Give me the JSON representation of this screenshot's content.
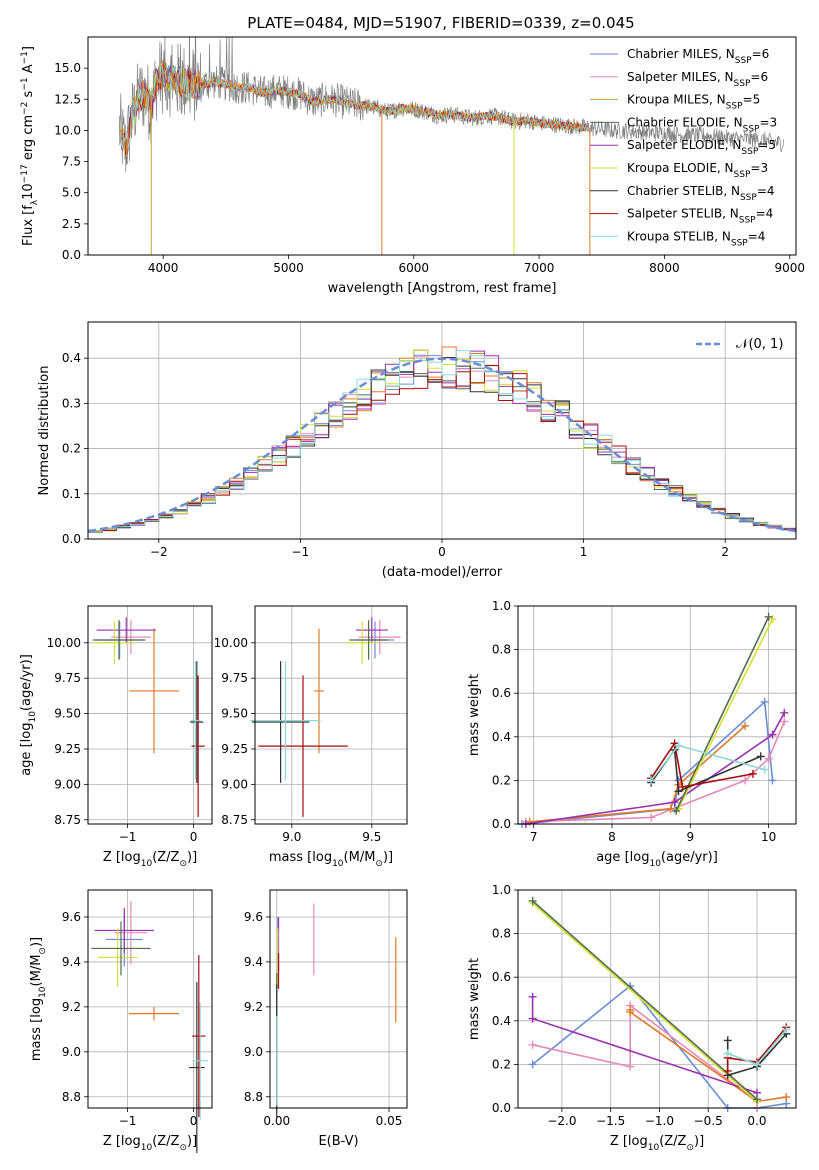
{
  "figure": {
    "title": "PLATE=0484, MJD=51907, FIBERID=0339, z=0.045"
  },
  "legend_spectrum": [
    {
      "label": "Chabrier MILES, N",
      "sub": "SSP",
      "tail": "=6",
      "color": "#6b8dd6"
    },
    {
      "label": "Salpeter MILES, N",
      "sub": "SSP",
      "tail": "=6",
      "color": "#e48ab8"
    },
    {
      "label": "Kroupa MILES, N",
      "sub": "SSP",
      "tail": "=5",
      "color": "#c7a33a"
    },
    {
      "label": "Chabrier ELODIE, N",
      "sub": "SSP",
      "tail": "=3",
      "color": "#4f6f4f"
    },
    {
      "label": "Salpeter ELODIE, N",
      "sub": "SSP",
      "tail": "=5",
      "color": "#9b30b0"
    },
    {
      "label": "Kroupa ELODIE, N",
      "sub": "SSP",
      "tail": "=3",
      "color": "#d7e030"
    },
    {
      "label": "Chabrier STELIB, N",
      "sub": "SSP",
      "tail": "=4",
      "color": "#333333"
    },
    {
      "label": "Salpeter STELIB, N",
      "sub": "SSP",
      "tail": "=4",
      "color": "#a80c0c"
    },
    {
      "label": "Kroupa STELIB, N",
      "sub": "SSP",
      "tail": "=4",
      "color": "#8fd8d8"
    }
  ],
  "legend_normal": {
    "label": "𝒩(0, 1)",
    "color": "#6b8dd6"
  },
  "chart_data": [
    {
      "id": "spectrum",
      "type": "line",
      "xlabel": "wavelength [Angstrom, rest frame]",
      "ylabel": "Flux [f",
      "ylabel_sub": "λ",
      "ylabel_tail": "10",
      "ylabel_sup": "−17",
      "ylabel_end": " erg cm",
      "ylabel_sup2": "−2",
      "ylabel_s": " s",
      "ylabel_sup3": "−1",
      "ylabel_a": " A",
      "ylabel_sup4": "−1",
      "ylabel_close": "]",
      "xlim": [
        3400,
        9050
      ],
      "ylim": [
        0,
        17.5
      ],
      "xticks": [
        "4000",
        "5000",
        "6000",
        "7000",
        "8000",
        "9000"
      ],
      "xtick_values": [
        4000,
        5000,
        6000,
        7000,
        8000,
        9000
      ],
      "yticks": [
        "0.0",
        "2.5",
        "5.0",
        "7.5",
        "10.0",
        "12.5",
        "15.0"
      ],
      "ytick_values": [
        0,
        2.5,
        5,
        7.5,
        10,
        12.5,
        15
      ],
      "data_x": [
        3650,
        3700,
        3750,
        3800,
        3850,
        3900,
        3950,
        4000,
        4050,
        4100,
        4200,
        4300,
        4400,
        4500,
        4600,
        4700,
        4800,
        4900,
        5000,
        5100,
        5200,
        5300,
        5400,
        5500,
        5600,
        5700,
        5800,
        5900,
        6000,
        6100,
        6200,
        6300,
        6400,
        6500,
        6600,
        6700,
        6800,
        6900,
        7000,
        7100,
        7200,
        7300,
        7400,
        7500,
        7600,
        7700,
        7800,
        7900,
        8000,
        8100,
        8200,
        8300,
        8400,
        8500,
        8600,
        8700,
        8800,
        8900
      ],
      "data_y": [
        10.2,
        8.5,
        11.0,
        12.5,
        13.0,
        12.0,
        14.0,
        14.5,
        14.2,
        14.0,
        13.8,
        13.6,
        13.9,
        13.7,
        13.5,
        13.4,
        13.0,
        13.2,
        13.1,
        12.9,
        12.3,
        12.5,
        12.4,
        12.1,
        12.0,
        11.8,
        11.5,
        11.8,
        11.7,
        11.5,
        11.2,
        11.3,
        11.1,
        11.0,
        11.2,
        11.0,
        10.7,
        10.8,
        10.6,
        10.5,
        10.4,
        10.3,
        10.2,
        10.1,
        10.0,
        10.0,
        9.9,
        9.8,
        9.8,
        9.7,
        9.6,
        9.6,
        9.5,
        9.4,
        9.3,
        9.3,
        9.2,
        9.0
      ]
    },
    {
      "id": "residuals",
      "type": "area",
      "xlabel": "(data-model)/error",
      "ylabel": "Normed distribution",
      "xlim": [
        -2.5,
        2.5
      ],
      "ylim": [
        0,
        0.48
      ],
      "xticks": [
        "−2",
        "−1",
        "0",
        "1",
        "2"
      ],
      "xtick_values": [
        -2,
        -1,
        0,
        1,
        2
      ],
      "yticks": [
        "0.0",
        "0.1",
        "0.2",
        "0.3",
        "0.4"
      ],
      "ytick_values": [
        0,
        0.1,
        0.2,
        0.3,
        0.4
      ],
      "bins_start": -2.5,
      "bin_width": 0.1
    },
    {
      "id": "age-vs-Z",
      "type": "scatter",
      "xlabel": "Z [log",
      "xlabel_sub": "10",
      "xlabel_tail": "(Z/Z",
      "xlabel_sub2": "⊙",
      "xlabel_close": ")]",
      "ylabel": "age  [log",
      "ylabel_sub": "10",
      "ylabel_tail": "(age/yr)]",
      "xlim": [
        -1.6,
        0.28
      ],
      "ylim": [
        8.72,
        10.26
      ],
      "xticks": [
        "−1",
        "0"
      ],
      "xtick_values": [
        -1,
        0
      ],
      "yticks": [
        "8.75",
        "9.00",
        "9.25",
        "9.50",
        "9.75",
        "10.00"
      ],
      "ytick_values": [
        8.75,
        9.0,
        9.25,
        9.5,
        9.75,
        10.0
      ],
      "points": [
        {
          "x": -1.12,
          "y": 10.02,
          "xerr": 0.35,
          "yerr": 0.13,
          "color": "#6b8dd6"
        },
        {
          "x": -0.95,
          "y": 10.04,
          "xerr": 0.3,
          "yerr": 0.12,
          "color": "#e48ab8"
        },
        {
          "x": -0.6,
          "y": 9.66,
          "xerr": 0.38,
          "yerr": 0.44,
          "color": "#e07a2a"
        },
        {
          "x": -1.02,
          "y": 10.09,
          "xerr": 0.45,
          "yerr": 0.09,
          "color": "#9b30b0"
        },
        {
          "x": -1.2,
          "y": 10.0,
          "xerr": 0.32,
          "yerr": 0.15,
          "color": "#d7e030"
        },
        {
          "x": -1.13,
          "y": 10.02,
          "xerr": 0.4,
          "yerr": 0.14,
          "color": "#4f6f4f"
        },
        {
          "x": 0.05,
          "y": 9.44,
          "xerr": 0.1,
          "yerr": 0.43,
          "color": "#333333"
        },
        {
          "x": 0.07,
          "y": 9.27,
          "xerr": 0.1,
          "yerr": 0.5,
          "color": "#a80c0c"
        },
        {
          "x": 0.03,
          "y": 9.45,
          "xerr": 0.08,
          "yerr": 0.42,
          "color": "#8fd8d8"
        }
      ]
    },
    {
      "id": "age-vs-mass",
      "type": "scatter",
      "xlabel": "mass [log",
      "xlabel_sub": "10",
      "xlabel_tail": "(M/M",
      "xlabel_sub2": "⊙",
      "xlabel_close": ")]",
      "xlim": [
        8.77,
        9.72
      ],
      "ylim": [
        8.72,
        10.26
      ],
      "xticks": [
        "9.0",
        "9.5"
      ],
      "xtick_values": [
        9.0,
        9.5
      ],
      "yticks": [
        "8.75",
        "9.00",
        "9.25",
        "9.50",
        "9.75",
        "10.00"
      ],
      "ytick_values": [
        8.75,
        9.0,
        9.25,
        9.5,
        9.75,
        10.0
      ],
      "points": [
        {
          "x": 9.52,
          "y": 10.02,
          "xerr": 0.12,
          "yerr": 0.13,
          "color": "#6b8dd6"
        },
        {
          "x": 9.55,
          "y": 10.04,
          "xerr": 0.13,
          "yerr": 0.12,
          "color": "#e48ab8"
        },
        {
          "x": 9.17,
          "y": 9.66,
          "xerr": 0.03,
          "yerr": 0.44,
          "color": "#e07a2a"
        },
        {
          "x": 9.5,
          "y": 10.09,
          "xerr": 0.1,
          "yerr": 0.09,
          "color": "#9b30b0"
        },
        {
          "x": 9.44,
          "y": 10.0,
          "xerr": 0.1,
          "yerr": 0.15,
          "color": "#d7e030"
        },
        {
          "x": 9.48,
          "y": 10.02,
          "xerr": 0.12,
          "yerr": 0.14,
          "color": "#4f6f4f"
        },
        {
          "x": 8.93,
          "y": 9.44,
          "xerr": 0.18,
          "yerr": 0.43,
          "color": "#333333"
        },
        {
          "x": 9.07,
          "y": 9.27,
          "xerr": 0.28,
          "yerr": 0.5,
          "color": "#a80c0c"
        },
        {
          "x": 8.96,
          "y": 9.45,
          "xerr": 0.22,
          "yerr": 0.42,
          "color": "#8fd8d8"
        }
      ]
    },
    {
      "id": "massweight-vs-age",
      "type": "line",
      "xlabel": "age  [log",
      "xlabel_sub": "10",
      "xlabel_tail": "(age/yr)]",
      "ylabel": "mass weight",
      "xlim": [
        6.8,
        10.35
      ],
      "ylim": [
        0,
        1.0
      ],
      "xticks": [
        "7",
        "8",
        "9",
        "10"
      ],
      "xtick_values": [
        7,
        8,
        9,
        10
      ],
      "yticks": [
        "0.0",
        "0.2",
        "0.4",
        "0.6",
        "0.8",
        "1.0"
      ],
      "ytick_values": [
        0,
        0.2,
        0.4,
        0.6,
        0.8,
        1.0
      ],
      "series": [
        {
          "color": "#6b8dd6",
          "x": [
            6.85,
            8.8,
            8.85,
            9.95,
            10.05
          ],
          "y": [
            0.0,
            0.07,
            0.2,
            0.56,
            0.2
          ]
        },
        {
          "color": "#e48ab8",
          "x": [
            6.9,
            8.5,
            9.7,
            10.0,
            10.2
          ],
          "y": [
            0.01,
            0.03,
            0.2,
            0.3,
            0.47
          ]
        },
        {
          "color": "#e07a2a",
          "x": [
            6.95,
            8.75,
            8.85,
            9.7
          ],
          "y": [
            0.01,
            0.07,
            0.18,
            0.45
          ]
        },
        {
          "color": "#9b30b0",
          "x": [
            6.9,
            8.8,
            10.05,
            10.2
          ],
          "y": [
            0.0,
            0.1,
            0.41,
            0.51
          ]
        },
        {
          "color": "#d7e030",
          "x": [
            8.85,
            10.05
          ],
          "y": [
            0.07,
            0.94
          ]
        },
        {
          "color": "#4f6f4f",
          "x": [
            8.82,
            10.0
          ],
          "y": [
            0.06,
            0.95
          ]
        },
        {
          "color": "#333333",
          "x": [
            8.5,
            8.8,
            8.85,
            9.9
          ],
          "y": [
            0.19,
            0.34,
            0.15,
            0.31
          ]
        },
        {
          "color": "#a80c0c",
          "x": [
            8.5,
            8.8,
            8.9,
            9.8
          ],
          "y": [
            0.21,
            0.37,
            0.17,
            0.23
          ]
        },
        {
          "color": "#8fd8d8",
          "x": [
            8.5,
            8.85,
            9.95
          ],
          "y": [
            0.2,
            0.36,
            0.25
          ]
        }
      ]
    },
    {
      "id": "mass-vs-Z",
      "type": "scatter",
      "xlabel": "Z [log",
      "xlabel_sub": "10",
      "xlabel_tail": "(Z/Z",
      "xlabel_sub2": "⊙",
      "xlabel_close": ")]",
      "ylabel": "mass [log",
      "ylabel_sub": "10",
      "ylabel_tail": "(M/M",
      "ylabel_sub2": "⊙",
      "ylabel_close": ")]",
      "xlim": [
        -1.6,
        0.28
      ],
      "ylim": [
        8.75,
        9.72
      ],
      "xticks": [
        "−1",
        "0"
      ],
      "xtick_values": [
        -1,
        0
      ],
      "yticks": [
        "8.8",
        "9.0",
        "9.2",
        "9.4",
        "9.6"
      ],
      "ytick_values": [
        8.8,
        9.0,
        9.2,
        9.4,
        9.6
      ],
      "points": [
        {
          "x": -1.05,
          "y": 9.5,
          "xerr": 0.28,
          "yerr": 0.12,
          "color": "#6b8dd6"
        },
        {
          "x": -0.95,
          "y": 9.53,
          "xerr": 0.25,
          "yerr": 0.14,
          "color": "#e48ab8"
        },
        {
          "x": -0.6,
          "y": 9.17,
          "xerr": 0.38,
          "yerr": 0.03,
          "color": "#e07a2a"
        },
        {
          "x": -1.05,
          "y": 9.54,
          "xerr": 0.45,
          "yerr": 0.1,
          "color": "#9b30b0"
        },
        {
          "x": -1.15,
          "y": 9.42,
          "xerr": 0.3,
          "yerr": 0.13,
          "color": "#d7e030"
        },
        {
          "x": -1.1,
          "y": 9.46,
          "xerr": 0.45,
          "yerr": 0.12,
          "color": "#4f6f4f"
        },
        {
          "x": 0.05,
          "y": 8.93,
          "xerr": 0.12,
          "yerr": 0.38,
          "color": "#333333"
        },
        {
          "x": 0.08,
          "y": 9.07,
          "xerr": 0.1,
          "yerr": 0.36,
          "color": "#a80c0c"
        },
        {
          "x": 0.1,
          "y": 8.96,
          "xerr": 0.12,
          "yerr": 0.26,
          "color": "#8fd8d8"
        }
      ]
    },
    {
      "id": "mass-vs-EBV",
      "type": "scatter",
      "xlabel": "E(B-V)",
      "xlim": [
        -0.003,
        0.058
      ],
      "ylim": [
        8.75,
        9.72
      ],
      "xticks": [
        "0.00",
        "0.05"
      ],
      "xtick_values": [
        0,
        0.05
      ],
      "yticks": [
        "8.8",
        "9.0",
        "9.2",
        "9.4",
        "9.6"
      ],
      "ytick_values": [
        8.8,
        9.0,
        9.2,
        9.4,
        9.6
      ],
      "points": [
        {
          "x": 0.0005,
          "y": 9.48,
          "yerr": 0.12,
          "color": "#6b8dd6"
        },
        {
          "x": 0.0165,
          "y": 9.5,
          "yerr": 0.16,
          "color": "#e48ab8"
        },
        {
          "x": 0.053,
          "y": 9.32,
          "yerr": 0.19,
          "color": "#e07a2a"
        },
        {
          "x": 0.0008,
          "y": 9.48,
          "yerr": 0.12,
          "color": "#9b30b0"
        },
        {
          "x": 0.0005,
          "y": 9.42,
          "yerr": 0.13,
          "color": "#d7e030"
        },
        {
          "x": 0.0,
          "y": 9.05,
          "yerr": 0.3,
          "color": "#4f6f4f"
        },
        {
          "x": 0.0,
          "y": 9.0,
          "yerr": 0.3,
          "color": "#333333"
        },
        {
          "x": 0.0008,
          "y": 9.36,
          "yerr": 0.08,
          "color": "#a80c0c"
        },
        {
          "x": 0.0,
          "y": 8.96,
          "yerr": 0.2,
          "color": "#8fd8d8"
        }
      ]
    },
    {
      "id": "massweight-vs-Z",
      "type": "line",
      "xlabel": "Z [log",
      "xlabel_sub": "10",
      "xlabel_tail": "(Z/Z",
      "xlabel_sub2": "⊙",
      "xlabel_close": ")]",
      "ylabel": "mass weight",
      "xlim": [
        -2.45,
        0.4
      ],
      "ylim": [
        0,
        1.0
      ],
      "xticks": [
        "−2.0",
        "−1.5",
        "−1.0",
        "−0.5",
        "0.0"
      ],
      "xtick_values": [
        -2.0,
        -1.5,
        -1.0,
        -0.5,
        0.0
      ],
      "yticks": [
        "0.0",
        "0.2",
        "0.4",
        "0.6",
        "0.8",
        "1.0"
      ],
      "ytick_values": [
        0,
        0.2,
        0.4,
        0.6,
        0.8,
        1.0
      ],
      "series": [
        {
          "color": "#6b8dd6",
          "x": [
            -2.3,
            -1.3,
            -0.3,
            0.0,
            0.3
          ],
          "y": [
            0.2,
            0.56,
            0.0,
            0.0,
            0.02
          ]
        },
        {
          "color": "#e48ab8",
          "x": [
            -2.3,
            -1.3,
            -1.3,
            0.0,
            0.0
          ],
          "y": [
            0.29,
            0.19,
            0.47,
            0.03,
            0.0
          ]
        },
        {
          "color": "#e07a2a",
          "x": [
            -1.3,
            -1.3,
            0.0,
            0.3
          ],
          "y": [
            0.45,
            0.44,
            0.03,
            0.05
          ]
        },
        {
          "color": "#9b30b0",
          "x": [
            -2.3,
            -2.3,
            0.0
          ],
          "y": [
            0.51,
            0.41,
            0.07
          ]
        },
        {
          "color": "#d7e030",
          "x": [
            -2.3,
            0.0
          ],
          "y": [
            0.94,
            0.03
          ]
        },
        {
          "color": "#4f6f4f",
          "x": [
            -2.3,
            0.0
          ],
          "y": [
            0.95,
            0.04
          ]
        },
        {
          "color": "#333333",
          "x": [
            -0.3,
            -0.3,
            0.0,
            0.3
          ],
          "y": [
            0.31,
            0.15,
            0.19,
            0.34
          ]
        },
        {
          "color": "#a80c0c",
          "x": [
            -0.3,
            -0.3,
            0.0,
            0.3
          ],
          "y": [
            0.17,
            0.23,
            0.21,
            0.37
          ]
        },
        {
          "color": "#8fd8d8",
          "x": [
            -0.3,
            0.0,
            0.3
          ],
          "y": [
            0.25,
            0.2,
            0.36
          ]
        }
      ]
    }
  ]
}
